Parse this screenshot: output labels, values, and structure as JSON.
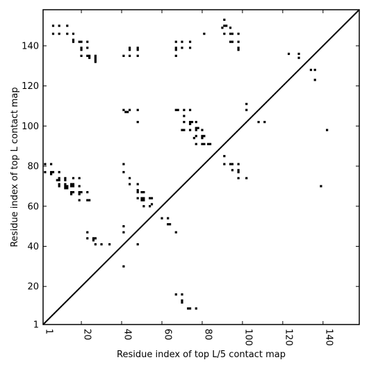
{
  "chart_data": {
    "type": "scatter",
    "title": "",
    "xlabel": "Residue index of top L/5 contact map",
    "ylabel": "Residue index of top L contact map",
    "xlim": [
      1,
      158
    ],
    "ylim": [
      1,
      158
    ],
    "xticks": [
      1,
      20,
      40,
      60,
      80,
      100,
      120,
      140
    ],
    "yticks": [
      1,
      20,
      40,
      60,
      80,
      100,
      120,
      140
    ],
    "grid": false,
    "diagonal": true,
    "marker": "square",
    "marker_color": "#000000",
    "points": [
      [
        6,
        150
      ],
      [
        9,
        150
      ],
      [
        13,
        150
      ],
      [
        6,
        146
      ],
      [
        9,
        146
      ],
      [
        13,
        146
      ],
      [
        16,
        146
      ],
      [
        16,
        143
      ],
      [
        16,
        142
      ],
      [
        19,
        142
      ],
      [
        20,
        142
      ],
      [
        23,
        142
      ],
      [
        20,
        139
      ],
      [
        23,
        139
      ],
      [
        20,
        138
      ],
      [
        20,
        135
      ],
      [
        23,
        135
      ],
      [
        24,
        135
      ],
      [
        24,
        134
      ],
      [
        27,
        135
      ],
      [
        27,
        134
      ],
      [
        27,
        133
      ],
      [
        27,
        132
      ],
      [
        41,
        135
      ],
      [
        44,
        135
      ],
      [
        44,
        139
      ],
      [
        44,
        138
      ],
      [
        48,
        139
      ],
      [
        48,
        138
      ],
      [
        48,
        135
      ],
      [
        67,
        142
      ],
      [
        70,
        142
      ],
      [
        74,
        142
      ],
      [
        67,
        139
      ],
      [
        67,
        138
      ],
      [
        70,
        139
      ],
      [
        74,
        139
      ],
      [
        67,
        135
      ],
      [
        81,
        146
      ],
      [
        90,
        149
      ],
      [
        91,
        150
      ],
      [
        91,
        153
      ],
      [
        92,
        150
      ],
      [
        94,
        149
      ],
      [
        91,
        146
      ],
      [
        94,
        146
      ],
      [
        95,
        146
      ],
      [
        98,
        146
      ],
      [
        94,
        142
      ],
      [
        95,
        142
      ],
      [
        98,
        142
      ],
      [
        98,
        139
      ],
      [
        98,
        138
      ],
      [
        123,
        136
      ],
      [
        128,
        136
      ],
      [
        128,
        134
      ],
      [
        134,
        128
      ],
      [
        136,
        128
      ],
      [
        136,
        123
      ],
      [
        41,
        108
      ],
      [
        42,
        107
      ],
      [
        43,
        107
      ],
      [
        44,
        108
      ],
      [
        48,
        108
      ],
      [
        48,
        102
      ],
      [
        67,
        108
      ],
      [
        68,
        108
      ],
      [
        71,
        108
      ],
      [
        74,
        108
      ],
      [
        71,
        105
      ],
      [
        71,
        102
      ],
      [
        74,
        102
      ],
      [
        75,
        102
      ],
      [
        74,
        101
      ],
      [
        70,
        98
      ],
      [
        71,
        98
      ],
      [
        74,
        98
      ],
      [
        77,
        102
      ],
      [
        77,
        99
      ],
      [
        78,
        99
      ],
      [
        77,
        98
      ],
      [
        80,
        98
      ],
      [
        77,
        95
      ],
      [
        80,
        95
      ],
      [
        81,
        95
      ],
      [
        76,
        94
      ],
      [
        80,
        94
      ],
      [
        77,
        91
      ],
      [
        80,
        91
      ],
      [
        81,
        91
      ],
      [
        83,
        91
      ],
      [
        84,
        91
      ],
      [
        102,
        111
      ],
      [
        102,
        108
      ],
      [
        108,
        102
      ],
      [
        111,
        102
      ],
      [
        142,
        98
      ],
      [
        2,
        81
      ],
      [
        2,
        77
      ],
      [
        5,
        81
      ],
      [
        5,
        77
      ],
      [
        6,
        77
      ],
      [
        5,
        76
      ],
      [
        9,
        77
      ],
      [
        9,
        74
      ],
      [
        8,
        73
      ],
      [
        9,
        73
      ],
      [
        12,
        74
      ],
      [
        12,
        73
      ],
      [
        9,
        71
      ],
      [
        12,
        71
      ],
      [
        9,
        70
      ],
      [
        12,
        70
      ],
      [
        13,
        70
      ],
      [
        12,
        69
      ],
      [
        13,
        69
      ],
      [
        15,
        71
      ],
      [
        16,
        71
      ],
      [
        15,
        70
      ],
      [
        16,
        70
      ],
      [
        16,
        74
      ],
      [
        19,
        74
      ],
      [
        15,
        67
      ],
      [
        16,
        67
      ],
      [
        15,
        66
      ],
      [
        19,
        70
      ],
      [
        19,
        67
      ],
      [
        20,
        67
      ],
      [
        19,
        66
      ],
      [
        23,
        67
      ],
      [
        19,
        63
      ],
      [
        23,
        63
      ],
      [
        24,
        63
      ],
      [
        41,
        81
      ],
      [
        41,
        77
      ],
      [
        44,
        74
      ],
      [
        44,
        71
      ],
      [
        48,
        71
      ],
      [
        48,
        68
      ],
      [
        48,
        67
      ],
      [
        50,
        67
      ],
      [
        51,
        67
      ],
      [
        48,
        64
      ],
      [
        50,
        64
      ],
      [
        51,
        64
      ],
      [
        50,
        63
      ],
      [
        51,
        63
      ],
      [
        54,
        64
      ],
      [
        55,
        64
      ],
      [
        51,
        60
      ],
      [
        54,
        60
      ],
      [
        55,
        61
      ],
      [
        91,
        85
      ],
      [
        91,
        81
      ],
      [
        94,
        81
      ],
      [
        95,
        81
      ],
      [
        98,
        81
      ],
      [
        95,
        78
      ],
      [
        98,
        78
      ],
      [
        98,
        77
      ],
      [
        98,
        74
      ],
      [
        102,
        74
      ],
      [
        139,
        70
      ],
      [
        23,
        47
      ],
      [
        23,
        44
      ],
      [
        26,
        44
      ],
      [
        27,
        44
      ],
      [
        26,
        43
      ],
      [
        27,
        41
      ],
      [
        30,
        41
      ],
      [
        34,
        41
      ],
      [
        41,
        50
      ],
      [
        41,
        47
      ],
      [
        48,
        41
      ],
      [
        60,
        54
      ],
      [
        63,
        54
      ],
      [
        63,
        51
      ],
      [
        64,
        51
      ],
      [
        67,
        47
      ],
      [
        41,
        30
      ],
      [
        67,
        16
      ],
      [
        70,
        16
      ],
      [
        70,
        13
      ],
      [
        70,
        12
      ],
      [
        73,
        9
      ],
      [
        74,
        9
      ],
      [
        77,
        9
      ]
    ]
  }
}
